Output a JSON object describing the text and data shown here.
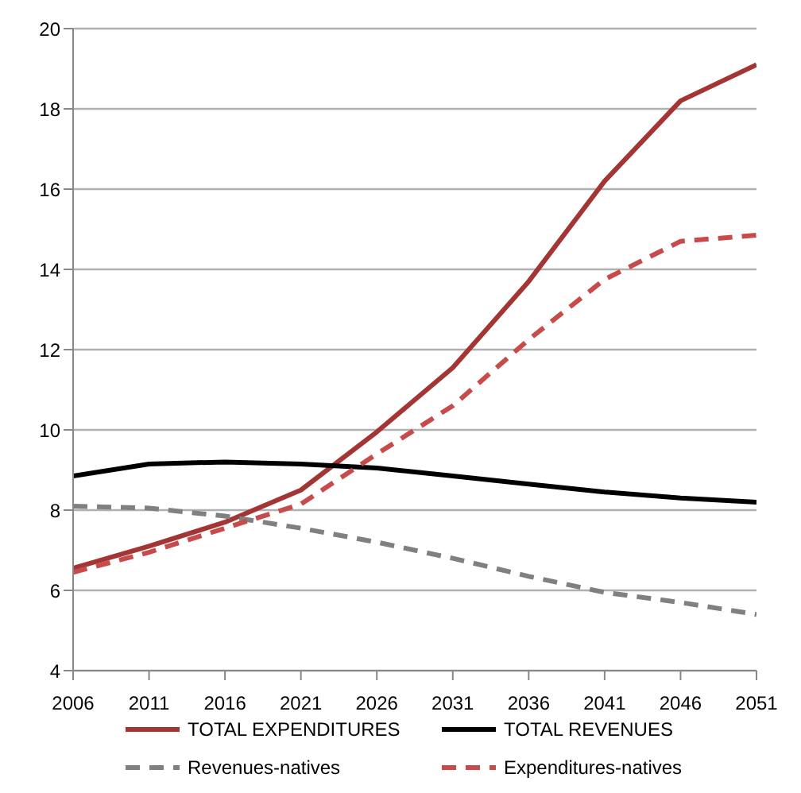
{
  "chart_data": {
    "type": "line",
    "x": [
      2006,
      2011,
      2016,
      2021,
      2026,
      2031,
      2036,
      2041,
      2046,
      2051
    ],
    "series": [
      {
        "name": "TOTAL EXPENDITURES",
        "color": "#a33535",
        "values": [
          6.55,
          7.1,
          7.7,
          8.5,
          9.95,
          11.55,
          13.7,
          16.2,
          18.2,
          19.1
        ]
      },
      {
        "name": "TOTAL REVENUES",
        "color": "#000000",
        "values": [
          8.85,
          9.15,
          9.2,
          9.15,
          9.05,
          8.85,
          8.65,
          8.45,
          8.3,
          8.2
        ]
      },
      {
        "name": "Revenues-natives",
        "color": "#808080",
        "line_style": "dashed",
        "values": [
          8.1,
          8.05,
          7.85,
          7.55,
          7.2,
          6.8,
          6.35,
          5.95,
          5.7,
          5.4
        ]
      },
      {
        "name": "Expenditures-natives",
        "color": "#c84b4b",
        "line_style": "dashed",
        "values": [
          6.45,
          6.95,
          7.55,
          8.15,
          9.4,
          10.6,
          12.25,
          13.75,
          14.7,
          14.85
        ]
      }
    ],
    "xlim": [
      2006,
      2051
    ],
    "xticks": [
      2006,
      2011,
      2016,
      2021,
      2026,
      2031,
      2036,
      2041,
      2046,
      2051
    ],
    "ylim": [
      4,
      20
    ],
    "yticks": [
      4,
      6,
      8,
      10,
      12,
      14,
      16,
      18,
      20
    ],
    "grid": "y",
    "legend": "bottom",
    "marker": "none",
    "line_style": "solid"
  }
}
